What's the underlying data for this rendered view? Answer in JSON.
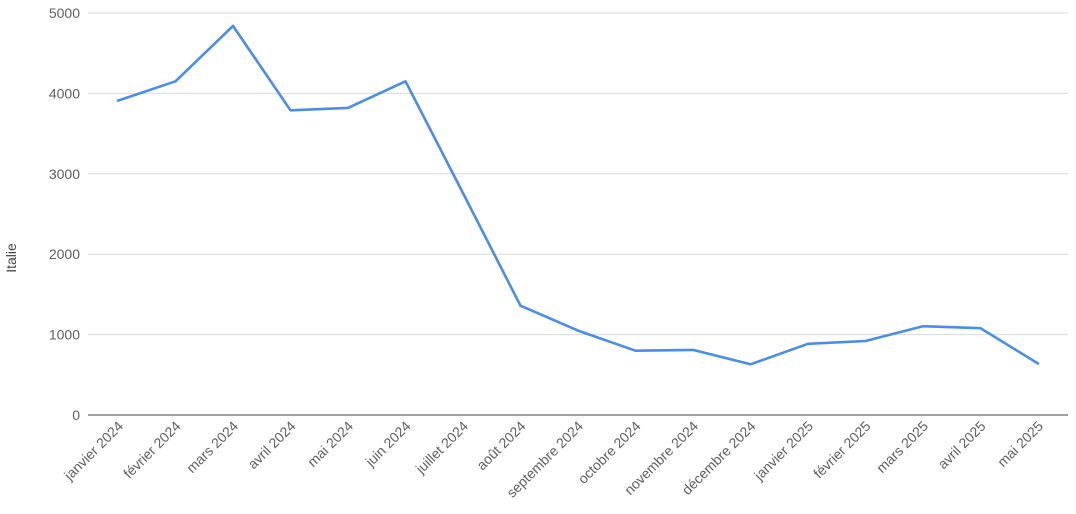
{
  "chart_data": {
    "type": "line",
    "title": "",
    "xlabel": "",
    "ylabel": "Italie",
    "ylim": [
      0,
      5000
    ],
    "yticks": [
      0,
      1000,
      2000,
      3000,
      4000,
      5000
    ],
    "grid": true,
    "categories": [
      "janvier 2024",
      "février 2024",
      "mars 2024",
      "avril 2024",
      "mai 2024",
      "juin 2024",
      "juillet 2024",
      "août 2024",
      "septembre 2024",
      "octobre 2024",
      "novembre 2024",
      "décembre 2024",
      "janvier 2025",
      "février 2025",
      "mars 2025",
      "avril 2025",
      "mai 2025"
    ],
    "series": [
      {
        "color": "#4a8de8",
        "values": [
          3910,
          4150,
          4840,
          3790,
          3820,
          4150,
          2760,
          1360,
          1050,
          800,
          810,
          630,
          885,
          920,
          1105,
          1080,
          640
        ]
      }
    ]
  }
}
